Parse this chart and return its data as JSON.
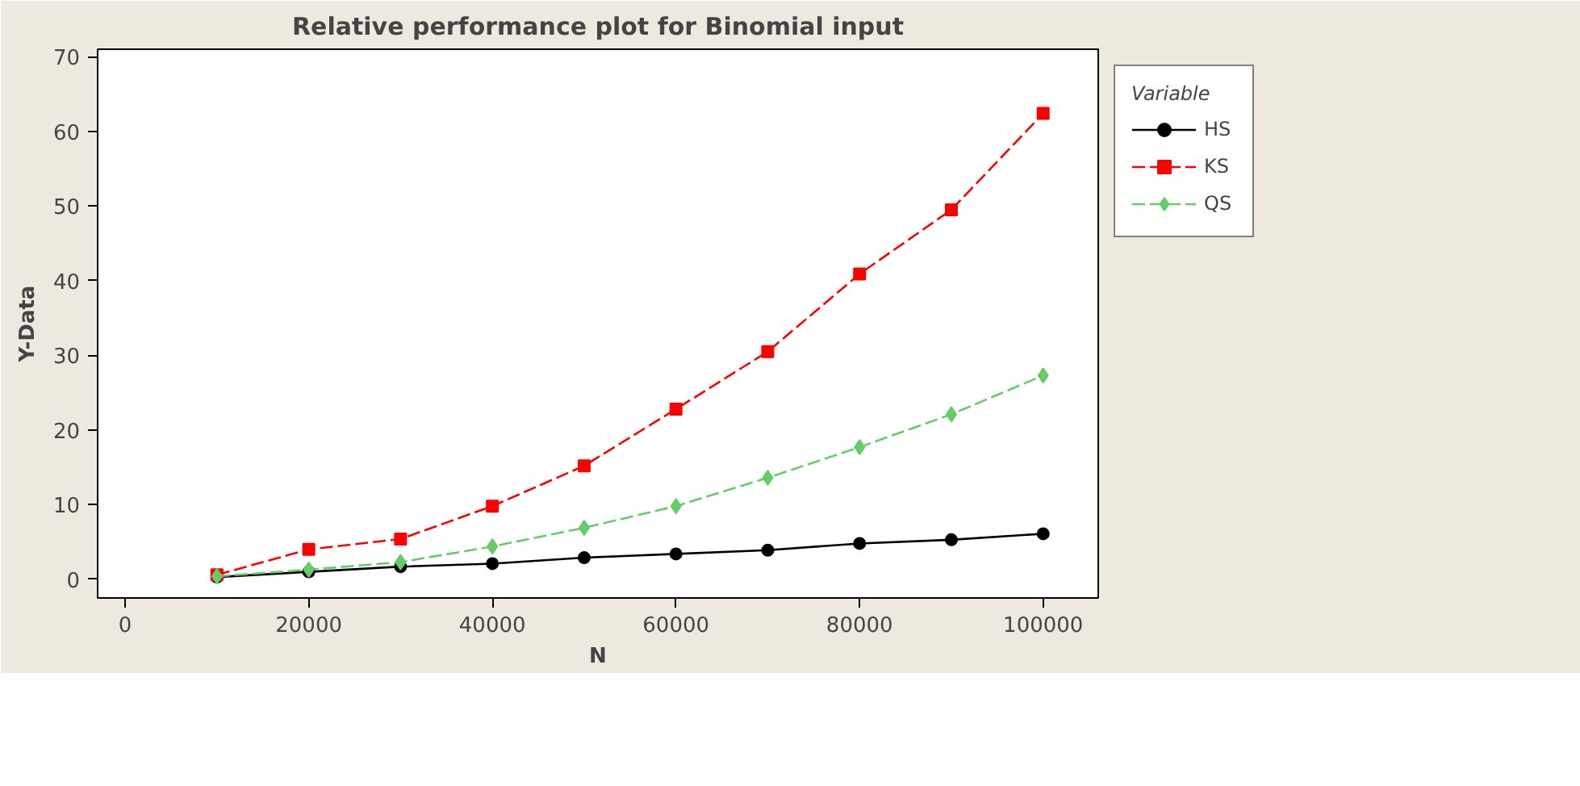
{
  "chart_data": {
    "type": "line",
    "title": "Relative performance plot for Binomial input",
    "xlabel": "N",
    "ylabel": "Y-Data",
    "legend_title": "Variable",
    "legend": "right",
    "grid": false,
    "x": [
      10000,
      20000,
      30000,
      40000,
      50000,
      60000,
      70000,
      80000,
      90000,
      100000
    ],
    "xlim": [
      -3000,
      106000
    ],
    "xticks": [
      0,
      20000,
      40000,
      60000,
      80000,
      100000
    ],
    "ylim": [
      -2.5,
      71
    ],
    "yticks": [
      0,
      10,
      20,
      30,
      40,
      50,
      60,
      70
    ],
    "series": [
      {
        "name": "HS",
        "color": "#000000",
        "marker": "circle",
        "line_style": "solid",
        "values": [
          0.3,
          1.0,
          1.7,
          2.1,
          2.9,
          3.4,
          3.9,
          4.8,
          5.3,
          6.1
        ]
      },
      {
        "name": "KS",
        "color": "#ff0000",
        "marker": "square",
        "line_style": "dashed",
        "values": [
          0.6,
          4.0,
          5.4,
          9.8,
          15.2,
          22.8,
          30.5,
          40.9,
          49.5,
          62.4
        ]
      },
      {
        "name": "QS",
        "color": "#66cc66",
        "marker": "diamond",
        "line_style": "dashed",
        "values": [
          0.4,
          1.3,
          2.3,
          4.4,
          6.9,
          9.8,
          13.6,
          17.7,
          22.1,
          27.3
        ]
      }
    ]
  }
}
